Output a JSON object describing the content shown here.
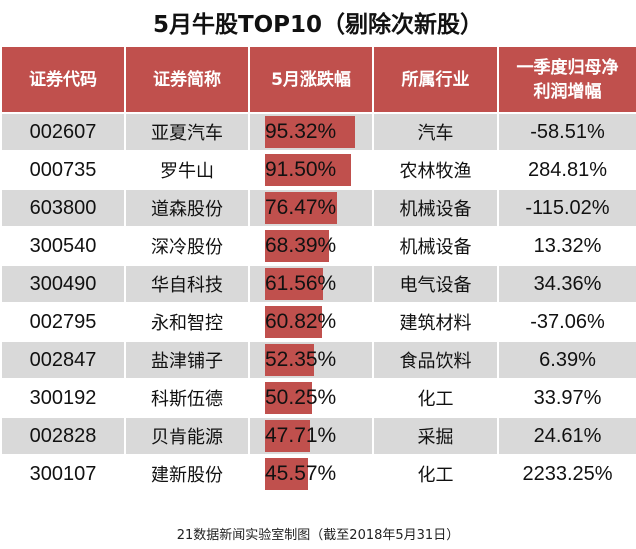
{
  "title": "5月牛股TOP10（剔除次新股）",
  "headers": [
    "证券代码",
    "证券简称",
    "5月涨跌幅",
    "所属行业",
    "一季度归母净利润增幅"
  ],
  "header_lines": {
    "col5_line1": "一季度归母净",
    "col5_line2": "利润增幅"
  },
  "colors": {
    "header_bg": "#c0504d",
    "bar": "#c0504d",
    "stripe": "#d9d9d9"
  },
  "rows": [
    {
      "code": "002607",
      "name": "亚夏汽车",
      "change": "95.32%",
      "change_value": 95.32,
      "industry": "汽车",
      "growth": "-58.51%"
    },
    {
      "code": "000735",
      "name": "罗牛山",
      "change": "91.50%",
      "change_value": 91.5,
      "industry": "农林牧渔",
      "growth": "284.81%"
    },
    {
      "code": "603800",
      "name": "道森股份",
      "change": "76.47%",
      "change_value": 76.47,
      "industry": "机械设备",
      "growth": "-115.02%"
    },
    {
      "code": "300540",
      "name": "深冷股份",
      "change": "68.39%",
      "change_value": 68.39,
      "industry": "机械设备",
      "growth": "13.32%"
    },
    {
      "code": "300490",
      "name": "华自科技",
      "change": "61.56%",
      "change_value": 61.56,
      "industry": "电气设备",
      "growth": "34.36%"
    },
    {
      "code": "002795",
      "name": "永和智控",
      "change": "60.82%",
      "change_value": 60.82,
      "industry": "建筑材料",
      "growth": "-37.06%"
    },
    {
      "code": "002847",
      "name": "盐津铺子",
      "change": "52.35%",
      "change_value": 52.35,
      "industry": "食品饮料",
      "growth": "6.39%"
    },
    {
      "code": "300192",
      "name": "科斯伍德",
      "change": "50.25%",
      "change_value": 50.25,
      "industry": "化工",
      "growth": "33.97%"
    },
    {
      "code": "002828",
      "name": "贝肯能源",
      "change": "47.71%",
      "change_value": 47.71,
      "industry": "采掘",
      "growth": "24.61%"
    },
    {
      "code": "300107",
      "name": "建新股份",
      "change": "45.57%",
      "change_value": 45.57,
      "industry": "化工",
      "growth": "2233.25%"
    }
  ],
  "footer": "21数据新闻实验室制图（截至2018年5月31日）"
}
